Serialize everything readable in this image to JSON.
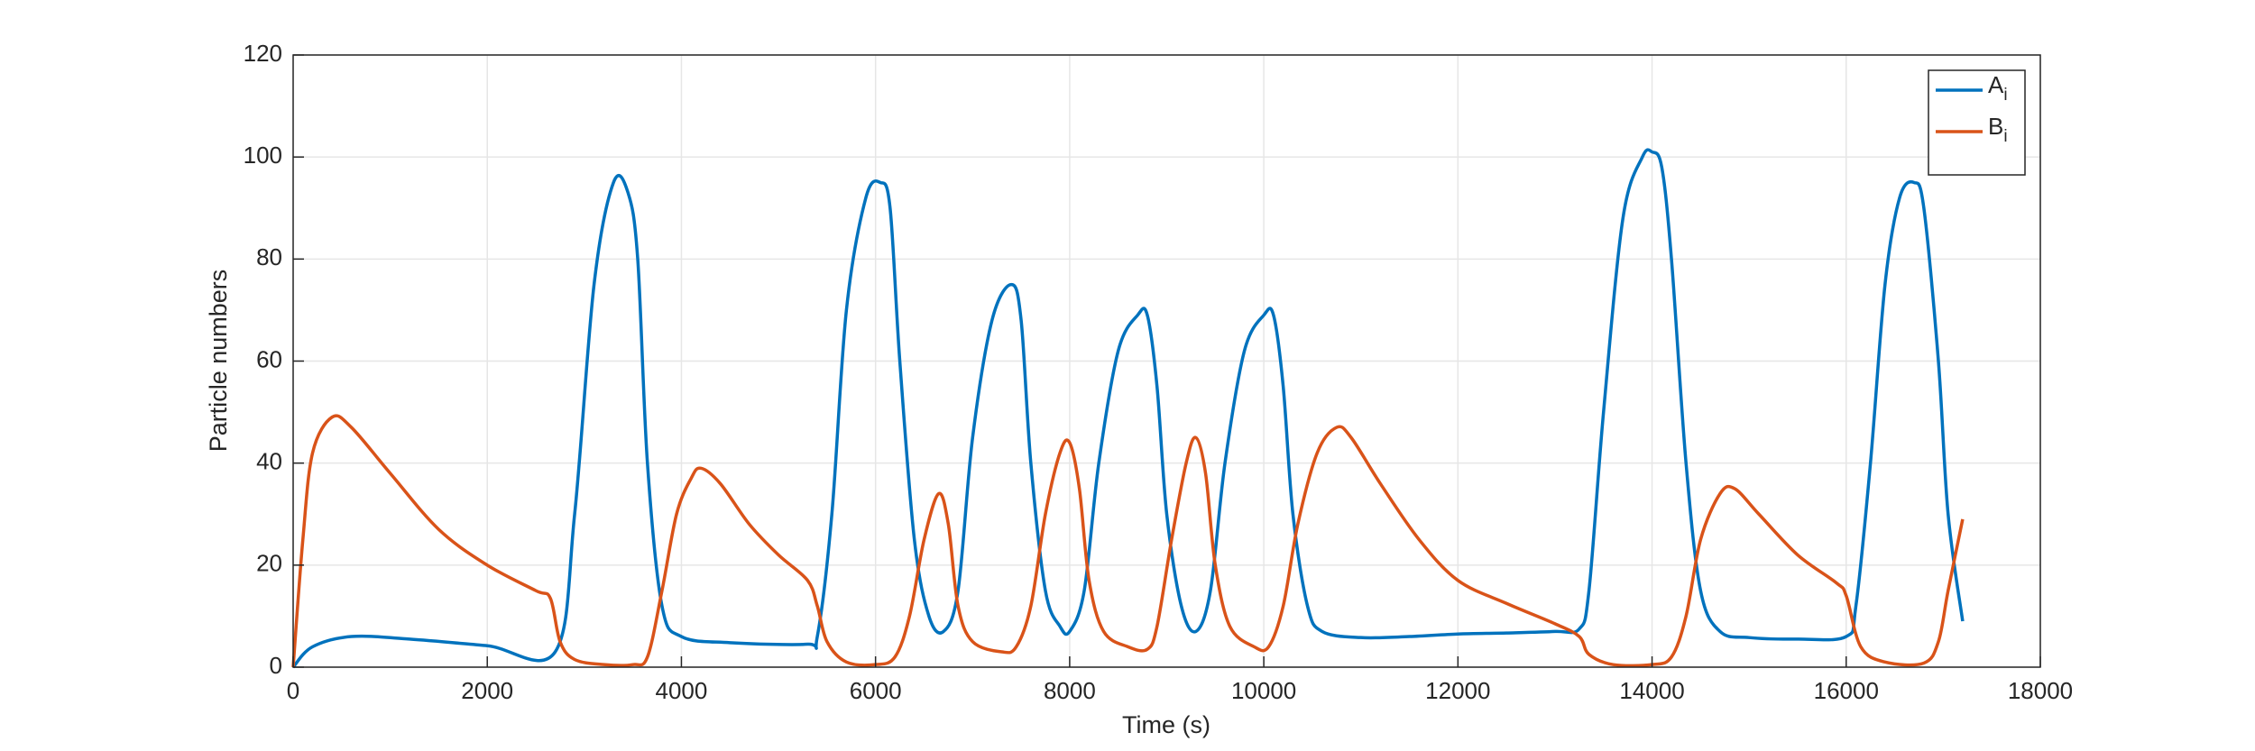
{
  "chart_data": {
    "type": "line",
    "xlabel": "Time (s)",
    "ylabel": "Particle numbers",
    "xlim": [
      0,
      18000
    ],
    "ylim": [
      0,
      120
    ],
    "xticks": [
      0,
      2000,
      4000,
      6000,
      8000,
      10000,
      12000,
      14000,
      16000,
      18000
    ],
    "yticks": [
      0,
      20,
      40,
      60,
      80,
      100,
      120
    ],
    "grid": true,
    "legend": "upper right",
    "series": [
      {
        "name": "A",
        "subscript": "i",
        "color": "#0072bd",
        "x": [
          0,
          200,
          600,
          1200,
          2000,
          2700,
          2900,
          3100,
          3300,
          3450,
          3550,
          3650,
          3800,
          4000,
          4500,
          5300,
          5400,
          5550,
          5700,
          5900,
          6050,
          6150,
          6250,
          6400,
          6550,
          6700,
          6850,
          7000,
          7200,
          7400,
          7500,
          7600,
          7750,
          7900,
          8000,
          8150,
          8300,
          8500,
          8700,
          8800,
          8900,
          9000,
          9150,
          9300,
          9450,
          9600,
          9800,
          10000,
          10100,
          10200,
          10300,
          10450,
          10600,
          11000,
          11500,
          12000,
          12500,
          13000,
          13250,
          13350,
          13500,
          13700,
          13900,
          14000,
          14100,
          14200,
          14350,
          14500,
          14700,
          15000,
          15500,
          16000,
          16100,
          16250,
          16400,
          16550,
          16700,
          16800,
          16950,
          17050,
          17200
        ],
        "values": [
          0,
          4,
          6,
          5.5,
          4.2,
          3,
          30,
          75,
          95,
          93,
          80,
          40,
          12,
          6,
          4.8,
          4.5,
          6,
          30,
          70,
          92,
          95,
          90,
          60,
          25,
          10,
          7,
          15,
          45,
          68,
          75,
          68,
          40,
          15,
          8,
          7,
          15,
          40,
          62,
          69,
          69,
          55,
          30,
          12,
          7,
          15,
          40,
          62,
          69,
          69,
          55,
          30,
          12,
          7,
          5.8,
          6,
          6.5,
          6.7,
          7,
          7.5,
          15,
          50,
          88,
          100,
          101,
          98,
          80,
          40,
          15,
          7,
          5.8,
          5.5,
          6,
          12,
          40,
          75,
          92,
          95,
          90,
          60,
          30,
          9
        ]
      },
      {
        "name": "B",
        "subscript": "i",
        "color": "#d95319",
        "x": [
          0,
          100,
          200,
          400,
          600,
          1000,
          1500,
          2000,
          2500,
          2650,
          2750,
          2900,
          3200,
          3500,
          3650,
          3800,
          3950,
          4100,
          4200,
          4400,
          4700,
          5000,
          5300,
          5400,
          5500,
          5700,
          6000,
          6200,
          6350,
          6500,
          6650,
          6750,
          6850,
          7000,
          7300,
          7450,
          7600,
          7750,
          7900,
          8000,
          8100,
          8200,
          8350,
          8600,
          8800,
          8900,
          9050,
          9200,
          9300,
          9400,
          9500,
          9650,
          9900,
          10050,
          10200,
          10350,
          10550,
          10750,
          10900,
          11200,
          11600,
          12000,
          12500,
          13000,
          13250,
          13350,
          13600,
          14000,
          14200,
          14350,
          14500,
          14700,
          14850,
          15100,
          15500,
          15900,
          16000,
          16150,
          16400,
          16800,
          16950,
          17050,
          17200
        ],
        "values": [
          0,
          25,
          42,
          49,
          47,
          38,
          27,
          20,
          15,
          13.5,
          5,
          1.5,
          0.5,
          0.5,
          2,
          15,
          30,
          37,
          39,
          36,
          28,
          22,
          17,
          12,
          5,
          1,
          0.5,
          2,
          10,
          25,
          34,
          28,
          12,
          5,
          3,
          4,
          12,
          30,
          42,
          44,
          35,
          17,
          7,
          4,
          3.5,
          8,
          25,
          40,
          45,
          38,
          20,
          8,
          4,
          4,
          12,
          28,
          42,
          47,
          45,
          36,
          25,
          17,
          12.5,
          8.5,
          6,
          2.5,
          0.5,
          0.5,
          2,
          10,
          25,
          34,
          35,
          30,
          22,
          16.5,
          14,
          4,
          1,
          0.8,
          5,
          15,
          29
        ]
      }
    ]
  }
}
